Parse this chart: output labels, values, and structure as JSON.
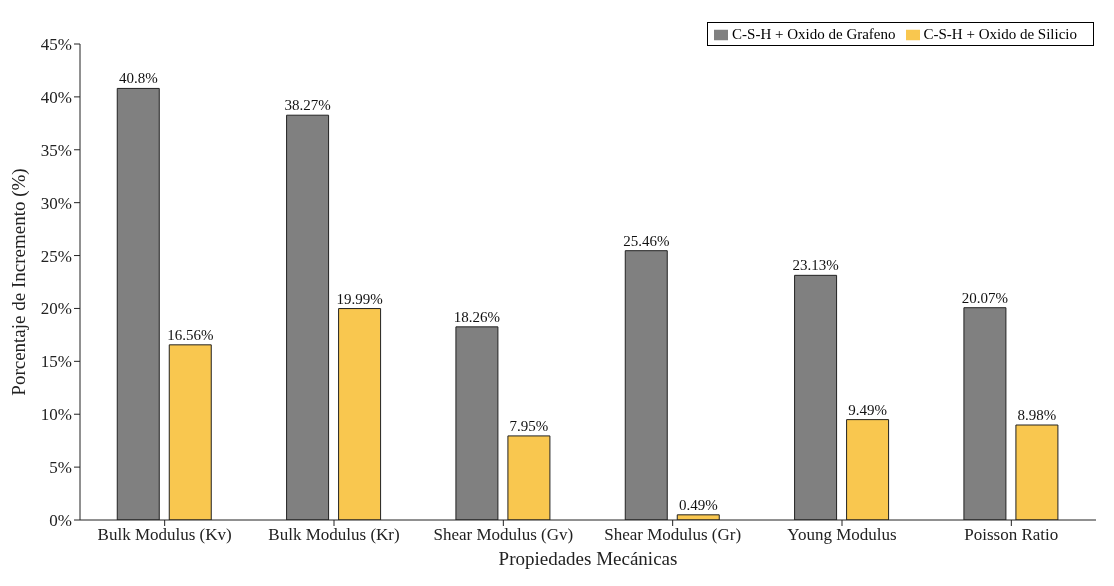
{
  "chart_data": {
    "type": "bar",
    "xlabel": "Propiedades Mecánicas",
    "ylabel": "Porcentaje de Incremento (%)",
    "categories": [
      "Bulk Modulus (Kv)",
      "Bulk Modulus (Kr)",
      "Shear Modulus (Gv)",
      "Shear Modulus (Gr)",
      "Young Modulus",
      "Poisson Ratio"
    ],
    "series": [
      {
        "name": "C-S-H + Oxido de Grafeno",
        "color": "#808080",
        "values": [
          40.8,
          38.27,
          18.26,
          25.46,
          23.13,
          20.07
        ],
        "value_labels": [
          "40.8%",
          "38.27%",
          "18.26%",
          "25.46%",
          "23.13%",
          "20.07%"
        ]
      },
      {
        "name": "C-S-H + Oxido de Silicio",
        "color": "#f9c74f",
        "values": [
          16.56,
          19.99,
          7.95,
          0.49,
          9.49,
          8.98
        ],
        "value_labels": [
          "16.56%",
          "19.99%",
          "7.95%",
          "0.49%",
          "9.49%",
          "8.98%"
        ]
      }
    ],
    "ylim": [
      0,
      45
    ],
    "yticks": [
      {
        "value": 0,
        "label": "0%"
      },
      {
        "value": 5,
        "label": "5%"
      },
      {
        "value": 10,
        "label": "10%"
      },
      {
        "value": 15,
        "label": "15%"
      },
      {
        "value": 20,
        "label": "20%"
      },
      {
        "value": 25,
        "label": "25%"
      },
      {
        "value": 30,
        "label": "30%"
      },
      {
        "value": 35,
        "label": "35%"
      },
      {
        "value": 40,
        "label": "40%"
      },
      {
        "value": 45,
        "label": "45%"
      }
    ],
    "grid": false,
    "legend": "top right"
  }
}
